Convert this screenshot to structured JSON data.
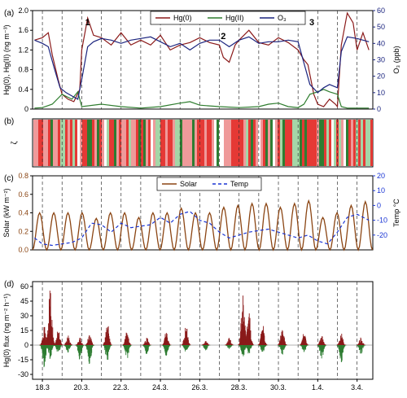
{
  "chart_data": [
    {
      "panel": "(a)",
      "type": "line",
      "ylabel": "Hg(0), Hg(II) (ng m⁻³)",
      "y2label": "O₃ (ppb)",
      "ylim": [
        0,
        2.0
      ],
      "y2lim": [
        0,
        60
      ],
      "yticks": [
        "0",
        "0.4",
        "0.8",
        "1.2",
        "1.6",
        "2.0"
      ],
      "y2ticks": [
        "0",
        "10",
        "20",
        "30",
        "40",
        "50",
        "60"
      ],
      "annotations": [
        "1",
        "2",
        "3"
      ],
      "legend": "top-center",
      "series": [
        {
          "name": "Hg(0)",
          "color": "#8b1a1a",
          "axis": "left",
          "x": [
            17.6,
            18.0,
            18.3,
            18.5,
            18.8,
            19.0,
            19.3,
            19.6,
            19.9,
            20.0,
            20.3,
            20.6,
            21.0,
            21.5,
            22.0,
            22.5,
            23.0,
            23.5,
            24.0,
            24.5,
            25.0,
            25.5,
            26.0,
            26.5,
            27.0,
            27.2,
            27.5,
            27.8,
            28.0,
            28.5,
            29.0,
            29.5,
            30.0,
            30.5,
            31.0,
            31.3,
            31.5,
            31.8,
            32.0,
            32.3,
            32.6,
            32.9,
            33.0,
            33.2,
            33.5,
            33.8,
            34.0,
            34.3,
            34.6
          ],
          "values": [
            1.4,
            1.45,
            1.55,
            1.1,
            0.6,
            0.3,
            0.2,
            0.15,
            0.4,
            1.2,
            1.85,
            1.5,
            1.45,
            1.3,
            1.55,
            1.3,
            1.4,
            1.3,
            1.5,
            1.2,
            1.3,
            1.35,
            1.45,
            1.35,
            1.3,
            1.05,
            0.95,
            1.3,
            1.4,
            1.6,
            1.35,
            1.3,
            1.45,
            1.35,
            1.2,
            1.0,
            0.9,
            0.3,
            0.1,
            0.05,
            0.2,
            0.1,
            0.05,
            1.3,
            1.95,
            1.75,
            1.2,
            1.55,
            1.2
          ]
        },
        {
          "name": "Hg(II)",
          "color": "#2e7d2e",
          "axis": "left",
          "x": [
            17.6,
            18.0,
            18.5,
            19.0,
            19.5,
            19.8,
            20.0,
            21.0,
            22.0,
            23.0,
            24.0,
            25.0,
            25.5,
            26.0,
            27.0,
            28.0,
            29.0,
            29.5,
            30.0,
            30.5,
            31.0,
            31.3,
            31.6,
            32.0,
            32.3,
            32.6,
            33.0,
            33.2,
            33.5,
            34.0,
            34.6
          ],
          "values": [
            0.02,
            0.03,
            0.1,
            0.3,
            0.2,
            0.35,
            0.05,
            0.1,
            0.05,
            0.02,
            0.05,
            0.12,
            0.15,
            0.08,
            0.05,
            0.03,
            0.05,
            0.1,
            0.12,
            0.05,
            0.03,
            0.1,
            0.3,
            0.35,
            0.4,
            0.35,
            0.3,
            0.05,
            0.02,
            0.02,
            0.02
          ]
        },
        {
          "name": "O₃",
          "color": "#1a237e",
          "axis": "right",
          "x": [
            17.6,
            18.0,
            18.3,
            18.6,
            18.9,
            19.2,
            19.5,
            19.8,
            20.0,
            20.3,
            20.6,
            21.0,
            21.5,
            22.0,
            22.5,
            23.0,
            23.5,
            24.0,
            24.5,
            25.0,
            25.5,
            26.0,
            26.5,
            27.0,
            27.5,
            28.0,
            28.5,
            29.0,
            29.5,
            30.0,
            30.5,
            31.0,
            31.3,
            31.6,
            32.0,
            32.3,
            32.6,
            33.0,
            33.2,
            33.5,
            34.0,
            34.6
          ],
          "values": [
            42,
            40,
            38,
            25,
            13,
            10,
            8,
            6,
            18,
            38,
            41,
            43,
            42,
            40,
            42,
            43,
            44,
            41,
            38,
            40,
            36,
            40,
            42,
            42,
            38,
            42,
            44,
            40,
            41,
            41,
            42,
            41,
            28,
            15,
            10,
            13,
            15,
            13,
            35,
            44,
            43,
            41
          ]
        }
      ]
    },
    {
      "panel": "(b)",
      "type": "heatmap",
      "ylabel": "ζ",
      "colors": [
        "#e53935",
        "#ef9a9a",
        "#ffffff",
        "#a5d6a7",
        "#2e7d32"
      ]
    },
    {
      "panel": "(c)",
      "type": "line",
      "ylabel": "Solar (kW m⁻²)",
      "y2label": "Temp °C",
      "ylim": [
        0,
        0.8
      ],
      "y2lim": [
        -30,
        20
      ],
      "yticks": [
        "0.0",
        "0.2",
        "0.4",
        "0.6",
        "0.8"
      ],
      "y2ticks": [
        "-20",
        "-10",
        "0",
        "10",
        "20"
      ],
      "legend": "top-center",
      "series": [
        {
          "name": "Solar",
          "color": "#8b4513",
          "axis": "left",
          "day_peaks": [
            0.4,
            0.4,
            0.4,
            0.4,
            0.34,
            0.4,
            0.4,
            0.35,
            0.4,
            0.4,
            0.45,
            0.4,
            0.4,
            0.46,
            0.48,
            0.5,
            0.5,
            0.46,
            0.5,
            0.53,
            0.35,
            0.4,
            0.48,
            0.52
          ],
          "day_start": 17.5
        },
        {
          "name": "Temp",
          "color": "#1a35d4",
          "axis": "right",
          "dashed": true,
          "x": [
            17.6,
            18.0,
            18.5,
            19.0,
            19.5,
            20.0,
            20.5,
            21.0,
            21.5,
            22.0,
            22.5,
            23.0,
            23.5,
            24.0,
            24.5,
            25.0,
            25.5,
            26.0,
            26.5,
            27.0,
            27.5,
            28.0,
            28.5,
            29.0,
            29.5,
            30.0,
            30.5,
            31.0,
            31.5,
            32.0,
            32.5,
            33.0,
            33.5,
            34.0,
            34.6
          ],
          "values": [
            -22,
            -26,
            -27,
            -26,
            -25,
            -22,
            -12,
            -13,
            -18,
            -12,
            -15,
            -14,
            -13,
            -8,
            -12,
            -6,
            -4,
            -10,
            -12,
            -18,
            -22,
            -20,
            -18,
            -17,
            -16,
            -18,
            -20,
            -22,
            -20,
            -24,
            -26,
            -18,
            -8,
            -6,
            -10
          ]
        }
      ]
    },
    {
      "panel": "(d)",
      "type": "bar",
      "ylabel": "Hg(0) flux (ng m⁻² h⁻¹)",
      "ylim": [
        -35,
        65
      ],
      "yticks": [
        "-30",
        "-15",
        "0",
        "15",
        "30",
        "45",
        "60"
      ],
      "positive_color": "#8b1a1a",
      "negative_color": "#2e7d32",
      "events": [
        {
          "x": 18.1,
          "min": -25,
          "max": 20
        },
        {
          "x": 18.4,
          "min": -15,
          "max": 62
        },
        {
          "x": 18.8,
          "min": -10,
          "max": 20
        },
        {
          "x": 19.3,
          "min": -8,
          "max": 10
        },
        {
          "x": 19.9,
          "min": -15,
          "max": 8
        },
        {
          "x": 20.4,
          "min": -20,
          "max": 12
        },
        {
          "x": 21.3,
          "min": -18,
          "max": 25
        },
        {
          "x": 22.3,
          "min": -15,
          "max": 15
        },
        {
          "x": 23.3,
          "min": -10,
          "max": 8
        },
        {
          "x": 24.3,
          "min": -12,
          "max": 15
        },
        {
          "x": 25.3,
          "min": -8,
          "max": 22
        },
        {
          "x": 26.3,
          "min": -6,
          "max": 5
        },
        {
          "x": 27.5,
          "min": -4,
          "max": 8
        },
        {
          "x": 28.2,
          "min": -15,
          "max": 55
        },
        {
          "x": 28.5,
          "min": -10,
          "max": 40
        },
        {
          "x": 29.2,
          "min": -8,
          "max": 25
        },
        {
          "x": 30.2,
          "min": -10,
          "max": 20
        },
        {
          "x": 31.3,
          "min": -8,
          "max": 15
        },
        {
          "x": 32.2,
          "min": -15,
          "max": 10
        },
        {
          "x": 33.2,
          "min": -18,
          "max": 12
        },
        {
          "x": 34.2,
          "min": -10,
          "max": 8
        }
      ]
    }
  ],
  "x_axis": {
    "xlim": [
      17.5,
      34.8
    ],
    "ticks": [
      {
        "x": 18,
        "label": "18.3"
      },
      {
        "x": 20,
        "label": "20.3."
      },
      {
        "x": 22,
        "label": "22.3."
      },
      {
        "x": 24,
        "label": "24.3."
      },
      {
        "x": 26,
        "label": "26.3."
      },
      {
        "x": 28,
        "label": "28.3."
      },
      {
        "x": 30,
        "label": "30.3."
      },
      {
        "x": 32,
        "label": "1.4."
      },
      {
        "x": 34,
        "label": "3.4."
      }
    ],
    "day_lines": [
      18,
      19,
      20,
      21,
      22,
      23,
      24,
      25,
      26,
      27,
      28,
      29,
      30,
      31,
      32,
      33,
      34
    ]
  }
}
